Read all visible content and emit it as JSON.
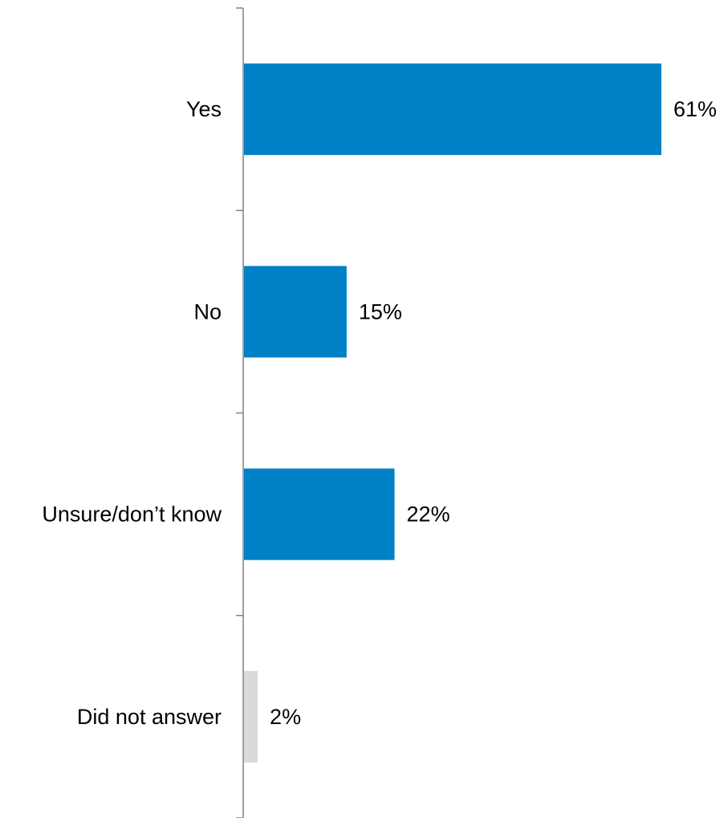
{
  "chart_data": {
    "type": "bar",
    "orientation": "horizontal",
    "categories": [
      "Yes",
      "No",
      "Unsure/don’t know",
      "Did not answer"
    ],
    "values": [
      61,
      15,
      22,
      2
    ],
    "value_labels": [
      "61%",
      "15%",
      "22%",
      "2%"
    ],
    "unit": "%",
    "xlim": [
      0,
      61
    ],
    "colors": [
      "#0081C6",
      "#0081C6",
      "#0081C6",
      "#D9D9D9"
    ],
    "grid": false,
    "legend": "none"
  }
}
